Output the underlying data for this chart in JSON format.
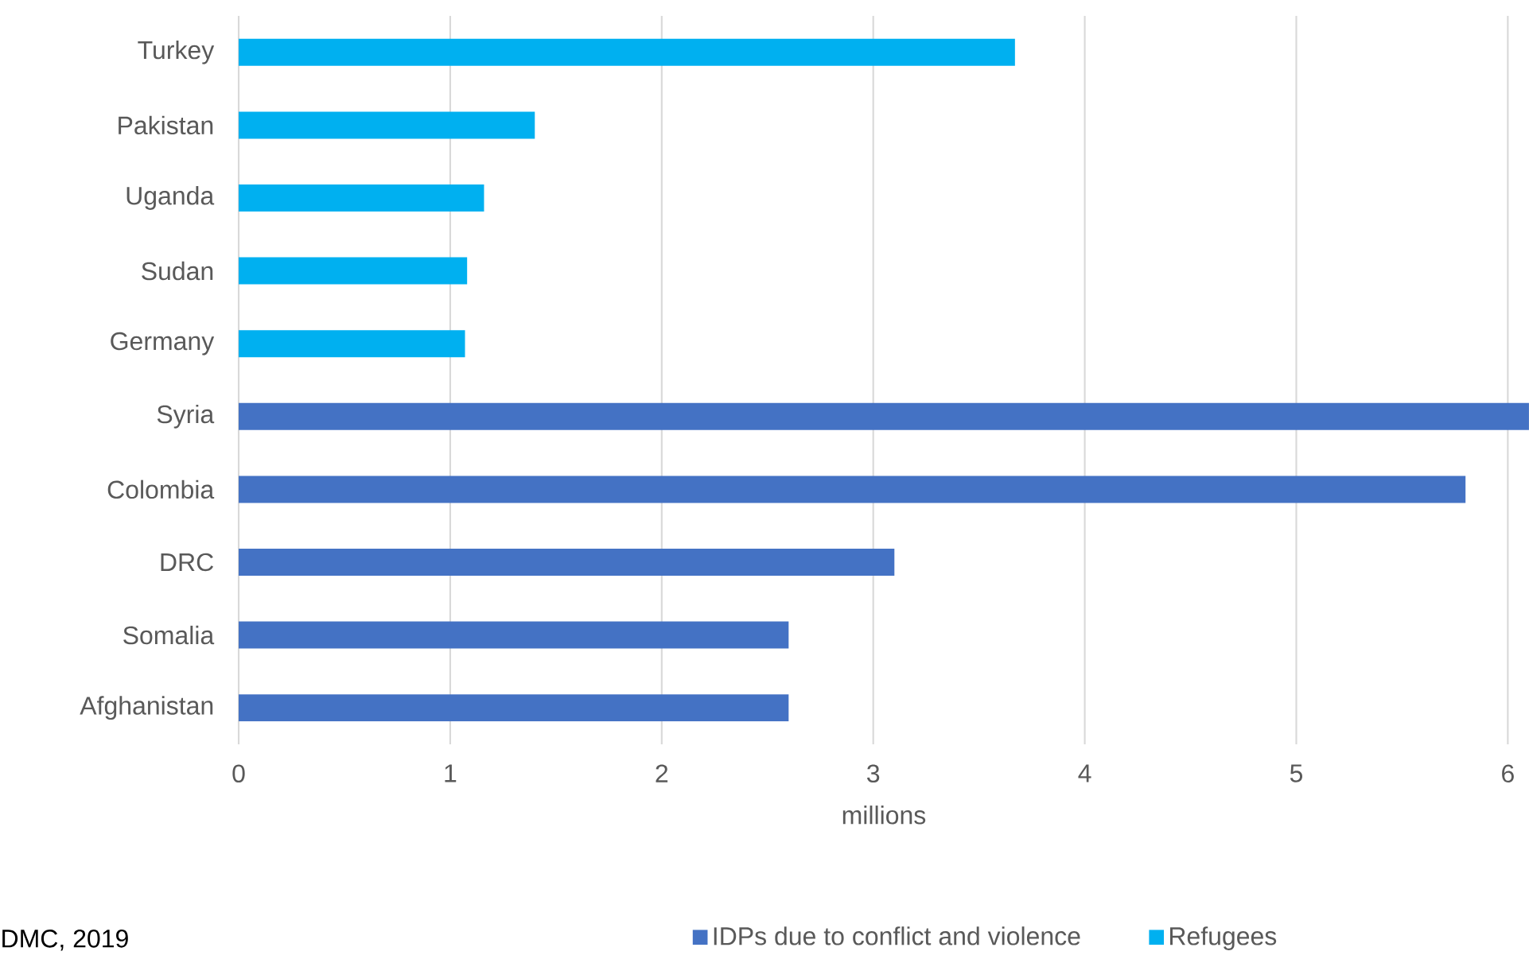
{
  "chart_data": {
    "type": "bar",
    "orientation": "horizontal",
    "xlabel": "millions",
    "categories": [
      "Turkey",
      "Pakistan",
      "Uganda",
      "Sudan",
      "Germany",
      "Syria",
      "Colombia",
      "DRC",
      "Somalia",
      "Afghanistan"
    ],
    "series": [
      {
        "name": "IDPs due to conflict and violence",
        "color": "#4472c4",
        "values": [
          null,
          null,
          null,
          null,
          null,
          6.1,
          5.8,
          3.1,
          2.6,
          2.6
        ]
      },
      {
        "name": "Refugees",
        "color": "#00b0f0",
        "values": [
          3.67,
          1.4,
          1.16,
          1.08,
          1.07,
          null,
          null,
          null,
          null,
          null
        ]
      }
    ],
    "xlim": [
      0,
      6.1
    ],
    "xticks": [
      0,
      1,
      2,
      3,
      4,
      5,
      6
    ],
    "grid": "x",
    "legend": "bottom",
    "annotations": [
      "DMC, 2019"
    ]
  }
}
